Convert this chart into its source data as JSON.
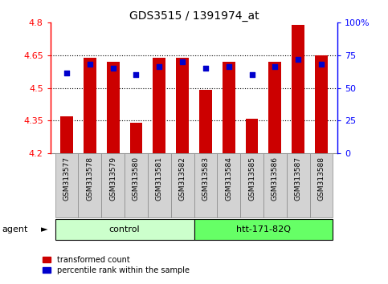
{
  "title": "GDS3515 / 1391974_at",
  "categories": [
    "GSM313577",
    "GSM313578",
    "GSM313579",
    "GSM313580",
    "GSM313581",
    "GSM313582",
    "GSM313583",
    "GSM313584",
    "GSM313585",
    "GSM313586",
    "GSM313587",
    "GSM313588"
  ],
  "bar_values": [
    4.37,
    4.64,
    4.62,
    4.34,
    4.64,
    4.64,
    4.49,
    4.62,
    4.36,
    4.62,
    4.79,
    4.65
  ],
  "dot_values": [
    4.57,
    4.61,
    4.59,
    4.56,
    4.6,
    4.62,
    4.59,
    4.6,
    4.56,
    4.6,
    4.63,
    4.61
  ],
  "bar_color": "#cc0000",
  "dot_color": "#0000cc",
  "ylim_left": [
    4.2,
    4.8
  ],
  "ylim_right": [
    0,
    100
  ],
  "yticks_left": [
    4.2,
    4.35,
    4.5,
    4.65,
    4.8
  ],
  "yticks_left_labels": [
    "4.2",
    "4.35",
    "4.5",
    "4.65",
    "4.8"
  ],
  "yticks_right": [
    0,
    25,
    50,
    75,
    100
  ],
  "yticks_right_labels": [
    "0",
    "25",
    "50",
    "75",
    "100%"
  ],
  "hline_values": [
    4.35,
    4.5,
    4.65
  ],
  "groups": [
    {
      "label": "control",
      "start": 0,
      "end": 5,
      "color": "#ccffcc"
    },
    {
      "label": "htt-171-82Q",
      "start": 6,
      "end": 11,
      "color": "#66ff66"
    }
  ],
  "legend": [
    {
      "label": "transformed count",
      "color": "#cc0000"
    },
    {
      "label": "percentile rank within the sample",
      "color": "#0000cc"
    }
  ],
  "bar_bottom": 4.2,
  "bar_width": 0.55
}
